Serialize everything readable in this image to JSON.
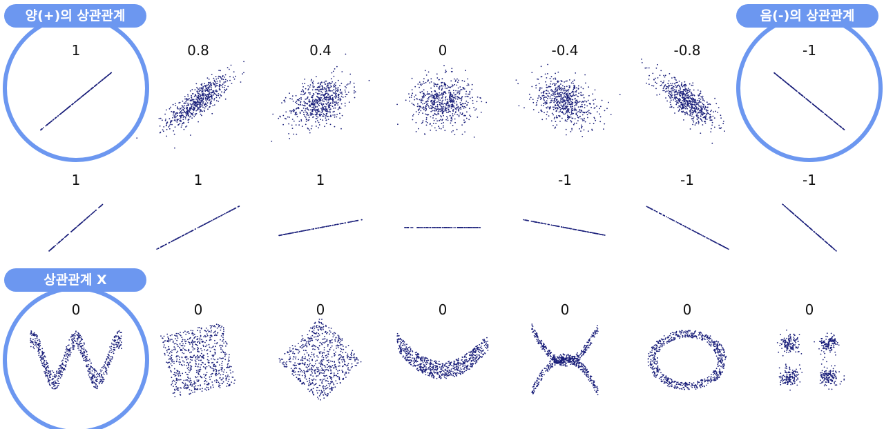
{
  "labels": {
    "positive": "양(+)의 상관관계",
    "negative": "음(-)의 상관관계",
    "none": "상관관계 X"
  },
  "colors": {
    "accent": "#6c97f0",
    "points": "#1a1f7a",
    "text": "#111111"
  },
  "chart_data": [
    {
      "type": "scatter",
      "row": 1,
      "description_values": "correlation coefficients",
      "panels": [
        {
          "value": "1",
          "kind": "gauss",
          "r": 1,
          "highlight": "positive"
        },
        {
          "value": "0.8",
          "kind": "gauss",
          "r": 0.8
        },
        {
          "value": "0.4",
          "kind": "gauss",
          "r": 0.4
        },
        {
          "value": "0",
          "kind": "gauss",
          "r": 0
        },
        {
          "value": "-0.4",
          "kind": "gauss",
          "r": -0.4
        },
        {
          "value": "-0.8",
          "kind": "gauss",
          "r": -0.8
        },
        {
          "value": "-1",
          "kind": "gauss",
          "r": -1,
          "highlight": "negative"
        }
      ]
    },
    {
      "type": "scatter",
      "row": 2,
      "panels": [
        {
          "value": "1",
          "kind": "line",
          "slope": 1
        },
        {
          "value": "1",
          "kind": "line",
          "slope": 0.55
        },
        {
          "value": "1",
          "kind": "line",
          "slope": 0.2
        },
        {
          "value": "",
          "kind": "line",
          "slope": 0
        },
        {
          "value": "-1",
          "kind": "line",
          "slope": -0.2
        },
        {
          "value": "-1",
          "kind": "line",
          "slope": -0.55
        },
        {
          "value": "-1",
          "kind": "line",
          "slope": -1
        }
      ]
    },
    {
      "type": "scatter",
      "row": 3,
      "panels": [
        {
          "value": "0",
          "kind": "wave",
          "highlight": "none"
        },
        {
          "value": "0",
          "kind": "rotsquare",
          "angle": 12
        },
        {
          "value": "0",
          "kind": "rotsquare",
          "angle": 45
        },
        {
          "value": "0",
          "kind": "parabola"
        },
        {
          "value": "0",
          "kind": "cross"
        },
        {
          "value": "0",
          "kind": "ring"
        },
        {
          "value": "0",
          "kind": "clusters"
        }
      ]
    }
  ]
}
